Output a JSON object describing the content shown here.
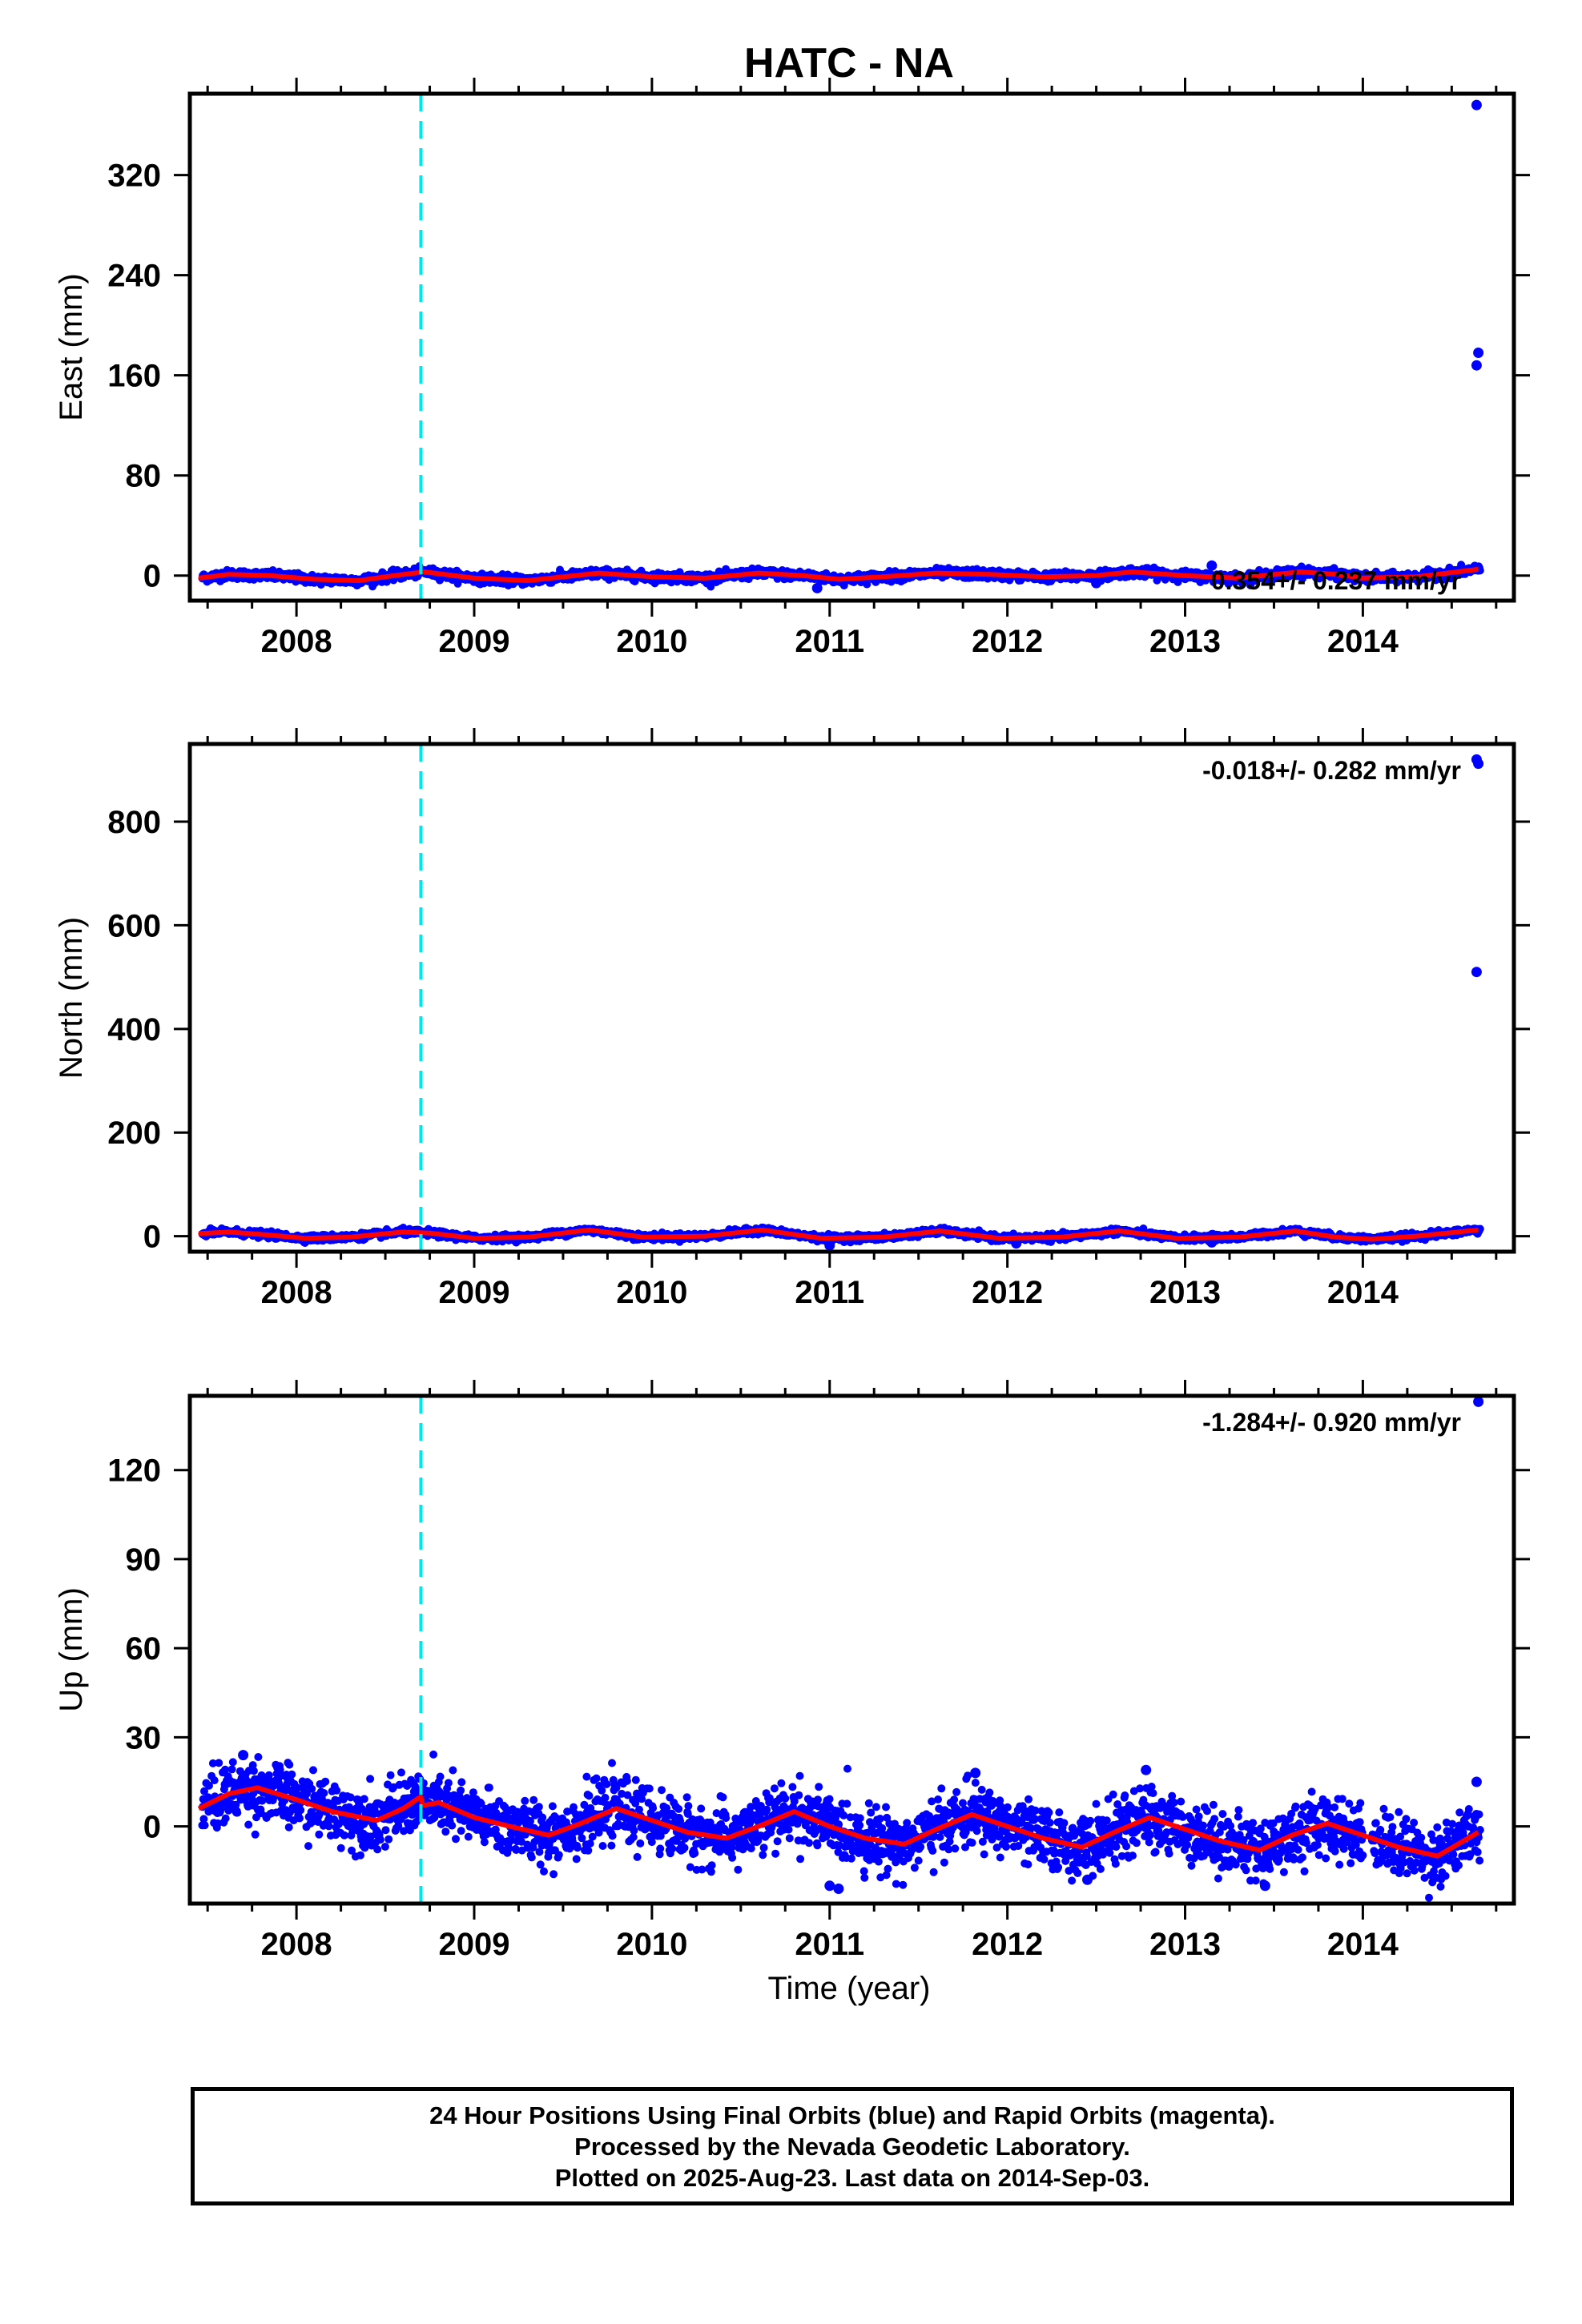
{
  "title": "HATC - NA",
  "xlabel": "Time (year)",
  "footer": {
    "line1": "24 Hour Positions Using Final Orbits (blue) and Rapid Orbits (magenta).",
    "line2": "Processed by the Nevada Geodetic Laboratory.",
    "line3": "Plotted on 2025-Aug-23. Last data on 2014-Sep-03."
  },
  "colors": {
    "points": "#0000ff",
    "model": "#ff0000",
    "event_line": "#00e5ee"
  },
  "chart_data": [
    {
      "type": "scatter",
      "component": "east",
      "ylabel": "East (mm)",
      "rate_text": "0.354+/- 0.237 mm/yr",
      "xlim": [
        2007.4,
        2014.85
      ],
      "ylim": [
        -20,
        385
      ],
      "yticks": [
        0,
        80,
        160,
        240,
        320
      ],
      "xticks": [
        2008,
        2009,
        2010,
        2011,
        2012,
        2013,
        2014
      ],
      "event_x": 2008.7,
      "noise_sd": 1.8,
      "outliers": [
        [
          2014.64,
          376
        ],
        [
          2014.65,
          178
        ],
        [
          2014.64,
          168
        ],
        [
          2010.93,
          -10
        ],
        [
          2012.5,
          -6
        ],
        [
          2013.15,
          8
        ]
      ],
      "model": [
        [
          2007.45,
          -2
        ],
        [
          2007.62,
          1
        ],
        [
          2007.85,
          0
        ],
        [
          2008.1,
          -3
        ],
        [
          2008.35,
          -4
        ],
        [
          2008.55,
          0
        ],
        [
          2008.72,
          3
        ],
        [
          2009.0,
          -2
        ],
        [
          2009.3,
          -4
        ],
        [
          2009.7,
          2
        ],
        [
          2010.0,
          -1
        ],
        [
          2010.3,
          -2
        ],
        [
          2010.6,
          2
        ],
        [
          2010.85,
          0
        ],
        [
          2011.05,
          -3
        ],
        [
          2011.3,
          -1
        ],
        [
          2011.6,
          2
        ],
        [
          2011.9,
          1
        ],
        [
          2012.2,
          -1
        ],
        [
          2012.5,
          0
        ],
        [
          2012.7,
          3
        ],
        [
          2013.0,
          0
        ],
        [
          2013.3,
          -2
        ],
        [
          2013.65,
          3
        ],
        [
          2013.85,
          1
        ],
        [
          2014.0,
          -2
        ],
        [
          2014.3,
          -1
        ],
        [
          2014.65,
          5
        ]
      ]
    },
    {
      "type": "scatter",
      "component": "north",
      "ylabel": "North (mm)",
      "rate_text": "-0.018+/- 0.282 mm/yr",
      "xlim": [
        2007.4,
        2014.85
      ],
      "ylim": [
        -30,
        950
      ],
      "yticks": [
        0,
        200,
        400,
        600,
        800
      ],
      "xticks": [
        2008,
        2009,
        2010,
        2011,
        2012,
        2013,
        2014
      ],
      "event_x": 2008.7,
      "noise_sd": 3,
      "outliers": [
        [
          2014.64,
          920
        ],
        [
          2014.65,
          912
        ],
        [
          2014.64,
          510
        ],
        [
          2011.0,
          -18
        ],
        [
          2012.05,
          -14
        ],
        [
          2013.15,
          -12
        ]
      ],
      "model": [
        [
          2007.45,
          5
        ],
        [
          2007.62,
          8
        ],
        [
          2007.85,
          2
        ],
        [
          2008.05,
          -4
        ],
        [
          2008.3,
          -2
        ],
        [
          2008.6,
          8
        ],
        [
          2008.75,
          6
        ],
        [
          2009.0,
          -4
        ],
        [
          2009.3,
          -2
        ],
        [
          2009.65,
          12
        ],
        [
          2009.95,
          -2
        ],
        [
          2010.3,
          0
        ],
        [
          2010.62,
          12
        ],
        [
          2010.95,
          -4
        ],
        [
          2011.3,
          -2
        ],
        [
          2011.62,
          10
        ],
        [
          2011.95,
          -4
        ],
        [
          2012.3,
          -2
        ],
        [
          2012.63,
          10
        ],
        [
          2012.95,
          -4
        ],
        [
          2013.3,
          -2
        ],
        [
          2013.62,
          10
        ],
        [
          2013.85,
          -2
        ],
        [
          2014.05,
          -6
        ],
        [
          2014.3,
          0
        ],
        [
          2014.65,
          12
        ]
      ]
    },
    {
      "type": "scatter",
      "component": "up",
      "ylabel": "Up (mm)",
      "rate_text": "-1.284+/- 0.920 mm/yr",
      "xlim": [
        2007.4,
        2014.85
      ],
      "ylim": [
        -26,
        145
      ],
      "yticks": [
        0,
        30,
        60,
        90,
        120
      ],
      "xticks": [
        2008,
        2009,
        2010,
        2011,
        2012,
        2013,
        2014
      ],
      "event_x": 2008.7,
      "noise_sd": 5,
      "gap": [
        2014.0,
        2014.05
      ],
      "outliers": [
        [
          2014.65,
          143
        ],
        [
          2011.0,
          -20
        ],
        [
          2011.05,
          -21
        ],
        [
          2013.45,
          -20
        ],
        [
          2012.45,
          -18
        ],
        [
          2007.7,
          24
        ],
        [
          2011.82,
          18
        ],
        [
          2012.78,
          19
        ],
        [
          2014.64,
          15
        ]
      ],
      "model": [
        [
          2007.45,
          6
        ],
        [
          2007.62,
          11
        ],
        [
          2007.78,
          13
        ],
        [
          2008.0,
          9
        ],
        [
          2008.2,
          5
        ],
        [
          2008.45,
          2
        ],
        [
          2008.6,
          6
        ],
        [
          2008.7,
          10
        ],
        [
          2008.71,
          7
        ],
        [
          2008.8,
          8
        ],
        [
          2009.0,
          3
        ],
        [
          2009.2,
          0
        ],
        [
          2009.42,
          -3
        ],
        [
          2009.6,
          1
        ],
        [
          2009.8,
          6
        ],
        [
          2010.0,
          2
        ],
        [
          2010.2,
          -2
        ],
        [
          2010.42,
          -4
        ],
        [
          2010.6,
          0
        ],
        [
          2010.8,
          5
        ],
        [
          2011.0,
          0
        ],
        [
          2011.2,
          -4
        ],
        [
          2011.42,
          -6
        ],
        [
          2011.6,
          -1
        ],
        [
          2011.8,
          4
        ],
        [
          2012.0,
          0
        ],
        [
          2012.2,
          -4
        ],
        [
          2012.42,
          -7
        ],
        [
          2012.6,
          -2
        ],
        [
          2012.8,
          3
        ],
        [
          2013.0,
          -1
        ],
        [
          2013.2,
          -5
        ],
        [
          2013.42,
          -8
        ],
        [
          2013.6,
          -3
        ],
        [
          2013.8,
          1
        ],
        [
          2014.0,
          -3
        ],
        [
          2014.2,
          -7
        ],
        [
          2014.42,
          -10
        ],
        [
          2014.65,
          -2
        ]
      ]
    }
  ]
}
